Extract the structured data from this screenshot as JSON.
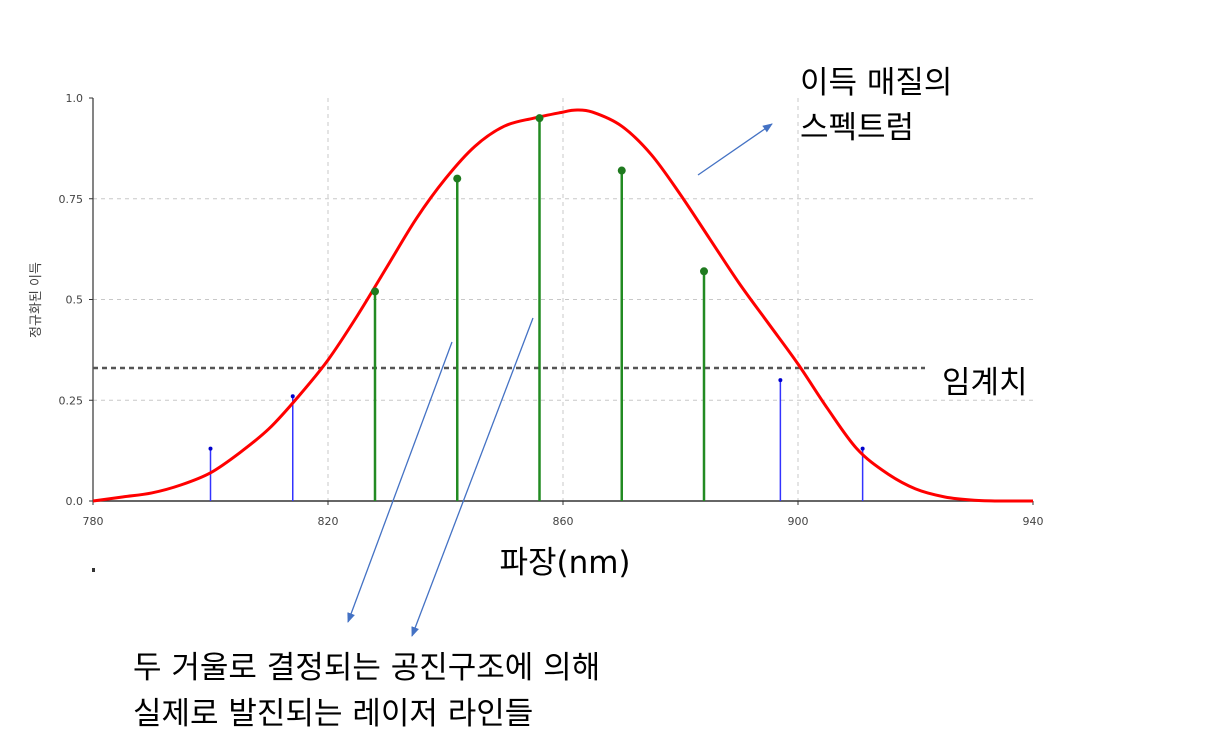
{
  "chart_data": {
    "type": "line",
    "ylabel": "정규화된 이득",
    "xlabel": "파장(nm)",
    "xlim": [
      780,
      940
    ],
    "ylim": [
      0,
      1.0
    ],
    "x_ticks": [
      "780",
      "820",
      "860",
      "900",
      "940"
    ],
    "y_ticks": [
      "0.0",
      "0.25",
      "0.5",
      "0.75",
      "1.0"
    ],
    "grid": true,
    "threshold": {
      "label": "임계치",
      "value": 0.33
    },
    "gain_curve": {
      "color": "#ff0000",
      "x": [
        780,
        785,
        790,
        795,
        800,
        805,
        810,
        815,
        820,
        825,
        830,
        835,
        840,
        845,
        850,
        855,
        860,
        862,
        865,
        870,
        875,
        880,
        885,
        890,
        895,
        900,
        905,
        910,
        915,
        920,
        925,
        930,
        935,
        940
      ],
      "y": [
        0.0,
        0.01,
        0.02,
        0.04,
        0.07,
        0.12,
        0.18,
        0.26,
        0.35,
        0.46,
        0.58,
        0.7,
        0.8,
        0.88,
        0.93,
        0.95,
        0.965,
        0.97,
        0.965,
        0.93,
        0.86,
        0.76,
        0.65,
        0.54,
        0.44,
        0.34,
        0.23,
        0.13,
        0.07,
        0.03,
        0.01,
        0.002,
        0.0,
        0.0
      ]
    },
    "lines_below_threshold": {
      "color": "#3333ff",
      "x": [
        800,
        814,
        897,
        911
      ],
      "y": [
        0.13,
        0.26,
        0.3,
        0.13
      ]
    },
    "lasing_lines": {
      "color": "#228b22",
      "x": [
        828,
        842,
        856,
        870,
        884
      ],
      "y": [
        0.52,
        0.8,
        0.95,
        0.82,
        0.57
      ]
    },
    "annotations": {
      "spectrum_label_1": "이득 매질의",
      "spectrum_label_2": "스펙트럼",
      "cavity_label_1": "두 거울로 결정되는 공진구조에 의해",
      "cavity_label_2": "실제로 발진되는 레이저 라인들"
    }
  }
}
